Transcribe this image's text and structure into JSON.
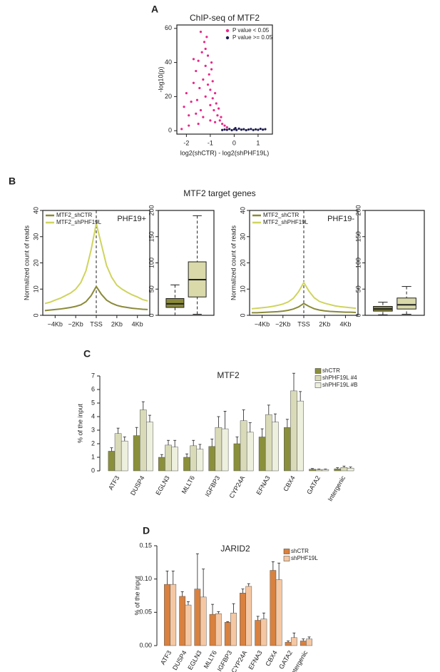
{
  "chart_data": [
    {
      "type": "scatter",
      "panel": "A",
      "title": "ChIP-seq of MTF2",
      "xlabel": "log2(shCTR) - log2(shPHF19L)",
      "ylabel": "-log10(p)",
      "xlim": [
        -2.4,
        1.6
      ],
      "ylim": [
        -2,
        62
      ],
      "xticks": [
        -2,
        -1,
        0,
        1
      ],
      "yticks": [
        0,
        20,
        40,
        60
      ],
      "legend": "upper right",
      "series": [
        {
          "name": "P value < 0.05",
          "color": "#e8288a",
          "x": [
            -2.1,
            -2.0,
            -1.9,
            -1.8,
            -1.7,
            -1.6,
            -1.55,
            -1.5,
            -1.45,
            -1.4,
            -1.35,
            -1.3,
            -1.25,
            -1.2,
            -1.2,
            -1.15,
            -1.1,
            -1.1,
            -1.05,
            -1.0,
            -1.0,
            -0.95,
            -0.9,
            -0.9,
            -0.85,
            -0.8,
            -0.75,
            -0.7,
            -0.65,
            -0.6,
            -0.55,
            -0.5,
            -0.4,
            -1.6,
            -1.3,
            -1.0,
            -0.8,
            -1.9,
            -1.5,
            -2.2,
            -0.3,
            -1.7,
            -1.4,
            -1.2,
            -0.95
          ],
          "y": [
            14,
            22,
            9,
            17,
            28,
            35,
            18,
            41,
            25,
            12,
            46,
            30,
            52,
            20,
            38,
            55,
            27,
            44,
            33,
            15,
            24,
            36,
            19,
            29,
            12,
            22,
            16,
            9,
            13,
            6,
            8,
            4,
            3,
            10,
            8,
            6,
            5,
            3,
            4,
            1,
            2,
            42,
            58,
            48,
            40
          ]
        },
        {
          "name": "P value >= 0.05",
          "color": "#1c1c50",
          "x": [
            -0.3,
            -0.2,
            -0.1,
            0,
            0.1,
            0.2,
            0.3,
            0.4,
            0.5,
            0.6,
            0.7,
            0.8,
            0.9,
            1.0,
            1.1,
            1.2,
            1.3,
            -0.4,
            -0.5,
            0.05
          ],
          "y": [
            0.5,
            1,
            0.3,
            0.8,
            0.4,
            1.2,
            0.6,
            0.9,
            0.3,
            0.7,
            1,
            0.4,
            0.8,
            0.5,
            1.1,
            0.6,
            0.9,
            0.7,
            0.4,
            1.5
          ]
        }
      ]
    },
    {
      "type": "line",
      "panel": "B",
      "suptitle": "MTF2 target genes",
      "annotation": "PHF19+",
      "ylabel": "Normalized count of reads",
      "x": [
        -5000,
        -4500,
        -4000,
        -3500,
        -3000,
        -2500,
        -2000,
        -1500,
        -1000,
        -500,
        0,
        500,
        1000,
        1500,
        2000,
        2500,
        3000,
        3500,
        4000,
        4500,
        5000
      ],
      "xlim": [
        -5200,
        5200
      ],
      "xticks": [
        {
          "value": -4000,
          "label": "−4Kb"
        },
        {
          "value": -2000,
          "label": "−2Kb"
        },
        {
          "value": 0,
          "label": "TSS"
        },
        {
          "value": 2000,
          "label": "2Kb"
        },
        {
          "value": 4000,
          "label": "4Kb"
        }
      ],
      "ylim": [
        0,
        40
      ],
      "yticks": [
        0,
        10,
        20,
        30,
        40
      ],
      "legend": "upper left",
      "series": [
        {
          "name": "MTF2_shCTR",
          "color": "#8a8a3a",
          "values": [
            1.8,
            2.0,
            2.2,
            2.4,
            2.7,
            3.0,
            3.4,
            4.0,
            5.2,
            7.5,
            11,
            8.0,
            5.8,
            4.6,
            3.8,
            3.3,
            3.0,
            2.7,
            2.5,
            2.3,
            2.2
          ]
        },
        {
          "name": "MTF2_shPHF19L",
          "color": "#cfd45e",
          "values": [
            4.5,
            5.0,
            5.8,
            6.5,
            7.5,
            8.5,
            10,
            12.5,
            17,
            25,
            35,
            27,
            19,
            14.5,
            11.5,
            10,
            8.8,
            7.8,
            7,
            6,
            5.5
          ]
        }
      ]
    },
    {
      "type": "box",
      "ylim": [
        0,
        200
      ],
      "yticks": [
        0,
        50,
        100,
        150,
        200
      ],
      "boxes": [
        {
          "color": "#8a8a3a",
          "whislo": 0,
          "q1": 15,
          "med": 22,
          "q3": 32,
          "whishi": 58
        },
        {
          "color": "#d9d9aa",
          "whislo": 2,
          "q1": 35,
          "med": 68,
          "q3": 102,
          "whishi": 190
        }
      ]
    },
    {
      "type": "line",
      "annotation": "PHF19-",
      "ylabel": "Normalized count of reads",
      "x": [
        -5000,
        -4500,
        -4000,
        -3500,
        -3000,
        -2500,
        -2000,
        -1500,
        -1000,
        -500,
        0,
        500,
        1000,
        1500,
        2000,
        2500,
        3000,
        3500,
        4000,
        4500,
        5000
      ],
      "xlim": [
        -5200,
        5200
      ],
      "xticks": [
        {
          "value": -4000,
          "label": "−4Kb"
        },
        {
          "value": -2000,
          "label": "−2Kb"
        },
        {
          "value": 0,
          "label": "TSS"
        },
        {
          "value": 2000,
          "label": "2Kb"
        },
        {
          "value": 4000,
          "label": "4Kb"
        }
      ],
      "ylim": [
        0,
        40
      ],
      "yticks": [
        0,
        10,
        20,
        30,
        40
      ],
      "legend": "upper left",
      "series": [
        {
          "name": "MTF2_shCTR",
          "color": "#8a8a3a",
          "values": [
            1.0,
            1.0,
            1.1,
            1.2,
            1.3,
            1.4,
            1.6,
            1.9,
            2.4,
            3.2,
            4.5,
            3.4,
            2.5,
            2.0,
            1.7,
            1.5,
            1.4,
            1.3,
            1.2,
            1.2,
            1.1
          ]
        },
        {
          "name": "MTF2_shPHF19L",
          "color": "#cfd45e",
          "values": [
            2.5,
            2.7,
            2.9,
            3.1,
            3.4,
            3.8,
            4.3,
            5.1,
            6.5,
            9,
            12.5,
            9.2,
            6.7,
            5.3,
            4.6,
            4.1,
            3.6,
            3.3,
            3.1,
            2.9,
            2.7
          ]
        }
      ]
    },
    {
      "type": "box",
      "ylim": [
        0,
        200
      ],
      "yticks": [
        0,
        50,
        100,
        150,
        200
      ],
      "boxes": [
        {
          "color": "#8a8a3a",
          "whislo": 1,
          "q1": 8,
          "med": 12,
          "q3": 17,
          "whishi": 25
        },
        {
          "color": "#d9d9aa",
          "whislo": 2,
          "q1": 12,
          "med": 20,
          "q3": 33,
          "whishi": 55
        }
      ]
    },
    {
      "type": "bar",
      "panel": "C",
      "title": "MTF2",
      "ylabel": "% of the input",
      "categories": [
        "ATF3",
        "DUSP4",
        "EGLN3",
        "MLLT6",
        "IGFBP3",
        "CYP24A",
        "EFNA3",
        "CBX4",
        "GATA2",
        "Intergenic"
      ],
      "ylim": [
        0,
        7
      ],
      "yticks": [
        0,
        1,
        2,
        3,
        4,
        5,
        6,
        7
      ],
      "legend": "upper right",
      "series": [
        {
          "name": "shCTR",
          "color": "#8a8f3c",
          "values": [
            1.45,
            2.6,
            1.0,
            1.0,
            1.8,
            2.0,
            2.5,
            3.2,
            0.12,
            0.15
          ],
          "errors": [
            0.25,
            0.6,
            0.2,
            0.25,
            0.55,
            0.5,
            0.6,
            0.6,
            0.05,
            0.08
          ]
        },
        {
          "name": "shPHF19L #4",
          "color": "#d9dbb8",
          "values": [
            2.75,
            4.5,
            1.9,
            1.85,
            3.2,
            3.7,
            4.15,
            5.9,
            0.1,
            0.25
          ],
          "errors": [
            0.4,
            0.6,
            0.35,
            0.4,
            0.8,
            0.8,
            0.7,
            1.3,
            0.03,
            0.1
          ]
        },
        {
          "name": "shPHF19L #B",
          "color": "#eef0de",
          "values": [
            2.2,
            3.6,
            1.75,
            1.6,
            3.1,
            2.85,
            3.6,
            5.15,
            0.1,
            0.2
          ],
          "errors": [
            0.3,
            0.5,
            0.5,
            0.35,
            1.3,
            0.7,
            0.6,
            0.7,
            0.03,
            0.08
          ]
        }
      ]
    },
    {
      "type": "bar",
      "panel": "D",
      "title": "JARID2",
      "ylabel": "% of the input",
      "categories": [
        "ATF3",
        "DUSP4",
        "EGLN3",
        "MLLT6",
        "IGFBP3",
        "CYP24A",
        "EFNA3",
        "CBX4",
        "GATA2",
        "Intergenic"
      ],
      "ylim": [
        0,
        0.15
      ],
      "yticks": [
        {
          "value": 0,
          "label": "0.00"
        },
        {
          "value": 0.05,
          "label": "0.05"
        },
        {
          "value": 0.1,
          "label": "0.10"
        },
        {
          "value": 0.15,
          "label": "0.15"
        }
      ],
      "legend": "upper right",
      "series": [
        {
          "name": "shCTR",
          "color": "#d9813f",
          "values": [
            0.092,
            0.074,
            0.085,
            0.047,
            0.035,
            0.079,
            0.038,
            0.113,
            0.005,
            0.007
          ],
          "errors": [
            0.02,
            0.007,
            0.053,
            0.015,
            0.001,
            0.006,
            0.006,
            0.013,
            0.002,
            0.003
          ]
        },
        {
          "name": "shPHF19L",
          "color": "#f5c8a3",
          "values": [
            0.092,
            0.061,
            0.073,
            0.048,
            0.049,
            0.089,
            0.04,
            0.099,
            0.012,
            0.01
          ],
          "errors": [
            0.02,
            0.005,
            0.042,
            0.003,
            0.014,
            0.004,
            0.009,
            0.025,
            0.007,
            0.003
          ]
        }
      ]
    }
  ]
}
